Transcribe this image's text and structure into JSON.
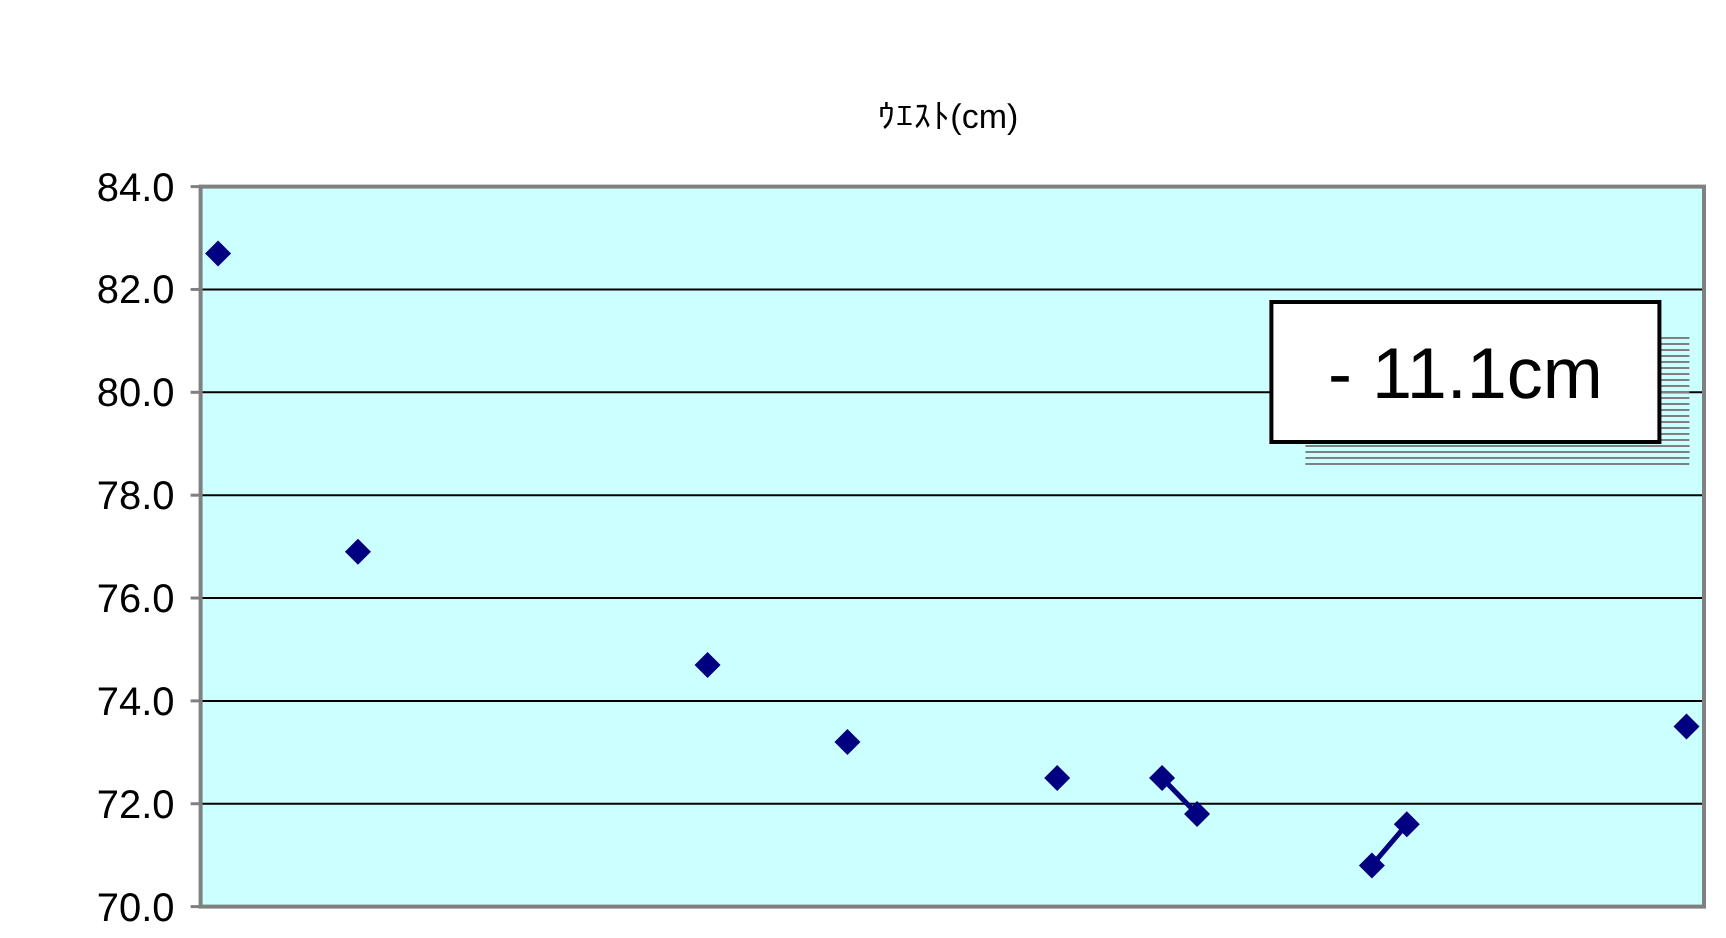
{
  "chart_data": {
    "type": "line",
    "title": "ｳｴｽﾄ(cm)",
    "categories": [
      null,
      null,
      null,
      null,
      null,
      null,
      null,
      null,
      null,
      null,
      null,
      null,
      null,
      null,
      null,
      null,
      null,
      null,
      null,
      null,
      null,
      null,
      null,
      null,
      null,
      null,
      null,
      null,
      null,
      null,
      null,
      null,
      null,
      null,
      null,
      null,
      null,
      null,
      null,
      null,
      null,
      null,
      null
    ],
    "series": [
      {
        "color": "#000080",
        "values": [
          82.7,
          null,
          null,
          null,
          76.9,
          null,
          null,
          null,
          null,
          null,
          null,
          null,
          null,
          null,
          74.7,
          null,
          null,
          null,
          73.2,
          null,
          null,
          null,
          null,
          null,
          72.5,
          null,
          null,
          72.5,
          71.8,
          null,
          null,
          null,
          null,
          70.8,
          71.6,
          null,
          null,
          null,
          null,
          null,
          null,
          null,
          73.5
        ]
      }
    ],
    "ylim": [
      70,
      84
    ],
    "yticks": [
      {
        "value": 70,
        "label": "70.0"
      },
      {
        "value": 72,
        "label": "72.0"
      },
      {
        "value": 74,
        "label": "74.0"
      },
      {
        "value": 76,
        "label": "76.0"
      },
      {
        "value": 78,
        "label": "78.0"
      },
      {
        "value": 80,
        "label": "80.0"
      },
      {
        "value": 82,
        "label": "82.0"
      },
      {
        "value": 84,
        "label": "84.0"
      }
    ],
    "grid": "y",
    "marker": "diamond",
    "line_style": "solid",
    "tick_labels": "y",
    "annotations": [
      "- 11.1cm"
    ]
  }
}
